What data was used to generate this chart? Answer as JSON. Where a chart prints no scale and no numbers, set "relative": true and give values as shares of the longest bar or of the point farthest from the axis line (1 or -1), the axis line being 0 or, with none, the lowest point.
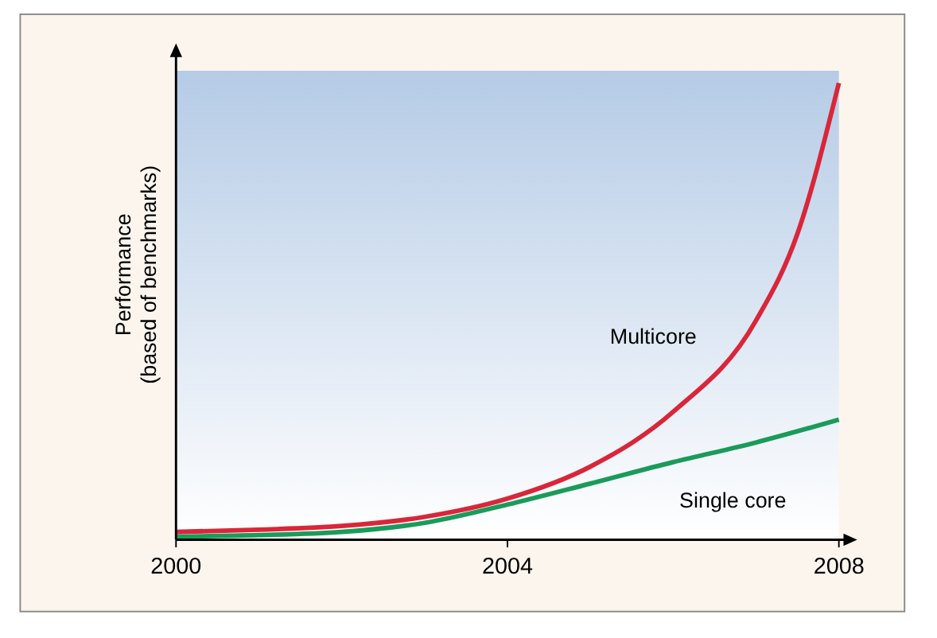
{
  "chart_data": {
    "type": "line",
    "relative": true,
    "ylabel": "Performance\n(based of benchmarks)",
    "xlim": [
      2000,
      2008
    ],
    "xticks": [
      2000,
      2004,
      2008
    ],
    "grid": false,
    "marker": "none",
    "line_style": "solid",
    "series": [
      {
        "name": "Multicore",
        "color": "#d9263a",
        "x": [
          2000,
          2001,
          2002,
          2003,
          2004,
          2005,
          2006,
          2007,
          2007.5,
          2008
        ],
        "values": [
          0.017,
          0.022,
          0.03,
          0.05,
          0.09,
          0.16,
          0.28,
          0.48,
          0.67,
          1
        ]
      },
      {
        "name": "Single core",
        "color": "#1a9b5a",
        "x": [
          2000,
          2001,
          2002,
          2003,
          2004,
          2005,
          2006,
          2007,
          2008
        ],
        "values": [
          0.007,
          0.01,
          0.017,
          0.037,
          0.077,
          0.123,
          0.17,
          0.213,
          0.263
        ]
      }
    ]
  }
}
